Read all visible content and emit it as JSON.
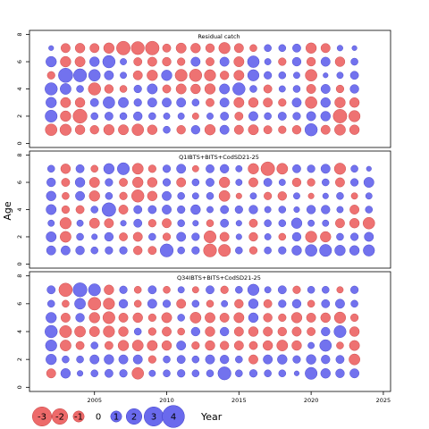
{
  "chart_data": {
    "type": "scatter",
    "subtype": "bubble",
    "xlabel": "Year",
    "ylabel": "Age",
    "xlim": [
      2000.5,
      2025.5
    ],
    "xticks": [
      2005,
      2010,
      2015,
      2020,
      2025
    ],
    "ylim": [
      -0.3,
      8.3
    ],
    "yticks": [
      0,
      2,
      4,
      6,
      8
    ],
    "years": [
      2002,
      2003,
      2004,
      2005,
      2006,
      2007,
      2008,
      2009,
      2010,
      2011,
      2012,
      2013,
      2014,
      2015,
      2016,
      2017,
      2018,
      2019,
      2020,
      2021,
      2022,
      2023,
      2024
    ],
    "ages": [
      1,
      2,
      3,
      4,
      5,
      6,
      7
    ],
    "colors": {
      "positive": "#6a6aed",
      "negative": "#ed6a6a",
      "stroke_positive": "#3b3bc4",
      "stroke_negative": "#c43b3b"
    },
    "panels": [
      {
        "name": "Residual catch",
        "years": [
          2002,
          2003,
          2004,
          2005,
          2006,
          2007,
          2008,
          2009,
          2010,
          2011,
          2012,
          2013,
          2014,
          2015,
          2016,
          2017,
          2018,
          2019,
          2020,
          2021,
          2022,
          2023
        ],
        "residuals": {
          "7": [
            0.3,
            -1.0,
            -1.1,
            -1.0,
            -1.3,
            -2.2,
            -2.0,
            -2.2,
            -0.8,
            -1.2,
            -1.1,
            -0.9,
            -1.5,
            -1.0,
            -0.6,
            0.6,
            0.6,
            0.8,
            -1.3,
            -1.0,
            0.4,
            0.3
          ],
          "6": [
            1.3,
            -1.3,
            -1.2,
            1.1,
            1.8,
            0.5,
            -0.8,
            -1.0,
            -0.9,
            -0.7,
            1.0,
            -0.8,
            1.0,
            -1.2,
            1.6,
            0.5,
            -0.7,
            0.9,
            -0.9,
            1.0,
            -1.1,
            0.6
          ],
          "5": [
            -0.7,
            2.4,
            2.0,
            1.6,
            1.0,
            0.5,
            -1.0,
            -1.3,
            1.3,
            -1.7,
            -1.8,
            -1.5,
            -0.9,
            -1.2,
            1.5,
            0.7,
            0.6,
            0.5,
            -1.6,
            0.3,
            0.5,
            0.8
          ],
          "4": [
            1.8,
            1.4,
            0.6,
            -1.8,
            -0.9,
            -0.6,
            0.7,
            1.2,
            -0.8,
            -1.2,
            -1.1,
            -1.3,
            1.2,
            1.8,
            0.6,
            -0.8,
            0.5,
            0.6,
            -1.0,
            1.0,
            -0.7,
            0.9
          ],
          "3": [
            1.3,
            -1.2,
            -1.1,
            0.8,
            1.6,
            1.2,
            0.7,
            1.0,
            1.0,
            1.0,
            0.6,
            -0.8,
            1.0,
            -1.2,
            -1.1,
            -1.0,
            -0.7,
            1.0,
            -1.6,
            1.1,
            -1.3,
            -1.1
          ],
          "2": [
            1.7,
            -1.3,
            -2.3,
            0.6,
            0.8,
            0.6,
            0.9,
            0.6,
            0.5,
            0.5,
            -0.5,
            0.5,
            0.8,
            -0.8,
            1.0,
            0.6,
            0.8,
            0.7,
            1.0,
            1.1,
            -2.2,
            -1.5
          ],
          "1": [
            -1.6,
            -1.5,
            -1.1,
            -0.9,
            -1.3,
            -1.2,
            -1.6,
            -1.1,
            0.6,
            -0.9,
            0.9,
            -1.3,
            1.0,
            -1.0,
            -1.2,
            -0.8,
            -0.7,
            -0.9,
            1.8,
            -1.0,
            -1.4,
            -1.1
          ]
        }
      },
      {
        "name": "Q1IBTS+BITS+CodSD21-25",
        "years": [
          2002,
          2003,
          2004,
          2005,
          2006,
          2007,
          2008,
          2009,
          2010,
          2011,
          2012,
          2013,
          2014,
          2015,
          2016,
          2017,
          2018,
          2019,
          2020,
          2021,
          2022,
          2023,
          2024
        ],
        "residuals": {
          "7": [
            0.6,
            -1.1,
            0.8,
            -0.6,
            1.3,
            1.7,
            -1.4,
            -0.7,
            0.7,
            1.0,
            -0.5,
            0.8,
            0.9,
            0.5,
            -1.3,
            -2.2,
            -1.4,
            0.8,
            0.7,
            1.0,
            -1.5,
            0.6,
            0.3
          ],
          "6": [
            0.9,
            -0.8,
            1.1,
            -1.2,
            0.7,
            -0.8,
            -1.3,
            -1.1,
            0.7,
            -1.0,
            0.6,
            0.8,
            -1.3,
            0.5,
            -1.0,
            0.8,
            0.5,
            -0.9,
            -0.7,
            0.6,
            -1.0,
            0.7,
            1.2
          ],
          "5": [
            1.1,
            -0.6,
            1.0,
            -1.3,
            0.6,
            -0.7,
            -1.8,
            -1.1,
            1.0,
            0.6,
            0.5,
            0.6,
            -1.4,
            -0.4,
            0.5,
            -0.7,
            -0.9,
            0.5,
            -0.4,
            0.4,
            0.6,
            -0.5,
            0.5
          ],
          "4": [
            1.2,
            -0.7,
            -0.8,
            0.6,
            2.2,
            -1.0,
            0.8,
            0.8,
            1.0,
            0.7,
            1.1,
            0.5,
            0.8,
            0.7,
            0.9,
            0.5,
            0.6,
            0.4,
            0.9,
            0.9,
            0.5,
            -1.0,
            0.6
          ],
          "3": [
            0.5,
            -1.5,
            0.5,
            -1.2,
            -1.0,
            0.4,
            0.8,
            -0.7,
            -1.0,
            0.6,
            0.4,
            -0.6,
            0.8,
            0.4,
            -0.8,
            0.6,
            0.6,
            1.3,
            0.5,
            0.5,
            -1.0,
            -1.1,
            -1.6
          ],
          "2": [
            1.2,
            -1.4,
            0.6,
            0.4,
            0.9,
            -0.8,
            -1.0,
            0.6,
            -0.7,
            1.0,
            0.7,
            -1.7,
            -1.0,
            0.4,
            -0.9,
            0.5,
            -0.6,
            0.9,
            -1.5,
            -1.3,
            0.6,
            0.7,
            1.0
          ],
          "1": [
            1.0,
            1.0,
            0.9,
            0.6,
            0.7,
            0.7,
            -0.9,
            -0.8,
            2.0,
            0.6,
            0.7,
            -2.0,
            -1.7,
            0.6,
            -0.7,
            0.6,
            0.7,
            1.1,
            1.6,
            1.7,
            1.3,
            1.1,
            1.5
          ]
        }
      },
      {
        "name": "Q34IBTS+BITS+CodSD21-25",
        "years": [
          2002,
          2003,
          2004,
          2005,
          2006,
          2007,
          2008,
          2009,
          2010,
          2011,
          2012,
          2013,
          2014,
          2015,
          2016,
          2017,
          2018,
          2019,
          2020,
          2021,
          2022,
          2023
        ],
        "residuals": {
          "7": [
            0.8,
            -2.1,
            2.3,
            1.7,
            -1.1,
            0.7,
            -0.6,
            0.8,
            -0.6,
            0.5,
            -0.5,
            0.8,
            -0.7,
            0.6,
            1.5,
            0.5,
            0.8,
            -0.7,
            0.6,
            0.6,
            -0.5,
            0.7
          ],
          "6": [
            0.6,
            -0.6,
            1.4,
            -1.9,
            -1.5,
            0.9,
            -0.6,
            1.0,
            0.7,
            -1.0,
            0.6,
            -0.6,
            0.5,
            -0.9,
            1.1,
            -0.8,
            0.7,
            0.9,
            -0.6,
            0.8,
            1.0,
            0.6
          ],
          "5": [
            1.3,
            -1.0,
            0.9,
            -1.3,
            -1.7,
            -1.0,
            -1.1,
            -0.7,
            -1.2,
            0.6,
            -1.4,
            -1.2,
            -1.0,
            -1.2,
            1.1,
            -0.9,
            -0.7,
            -1.3,
            -1.0,
            -1.1,
            -1.5,
            -0.7
          ],
          "4": [
            1.8,
            -1.7,
            -1.4,
            -1.2,
            -1.5,
            -1.1,
            0.6,
            -0.7,
            -1.0,
            -0.6,
            0.9,
            -1.1,
            0.9,
            -1.0,
            -1.1,
            -1.0,
            -0.9,
            -1.0,
            -0.8,
            0.9,
            1.7,
            -1.1
          ],
          "3": [
            1.5,
            -1.4,
            -0.8,
            0.6,
            -0.8,
            -1.3,
            -1.4,
            -1.2,
            -1.1,
            1.0,
            -0.7,
            -1.1,
            -0.9,
            -1.0,
            -0.8,
            -1.1,
            -1.4,
            -1.1,
            0.5,
            1.6,
            -0.6,
            -1.2
          ],
          "2": [
            1.3,
            0.6,
            0.6,
            1.0,
            1.1,
            1.0,
            1.0,
            -0.7,
            0.6,
            0.8,
            0.6,
            1.0,
            0.9,
            0.6,
            -1.0,
            1.0,
            1.1,
            0.7,
            1.1,
            0.9,
            0.8,
            -1.4
          ],
          "1": [
            -1.0,
            1.1,
            0.4,
            0.6,
            0.8,
            0.7,
            -1.6,
            0.5,
            0.6,
            0.7,
            0.6,
            0.6,
            2.0,
            0.6,
            0.7,
            0.6,
            0.6,
            0.3,
            1.7,
            1.1,
            0.9,
            1.0
          ]
        }
      }
    ],
    "legend": {
      "position": "bottom-left",
      "values": [
        -3,
        -2,
        -1,
        0,
        1,
        2,
        3,
        4
      ]
    }
  }
}
